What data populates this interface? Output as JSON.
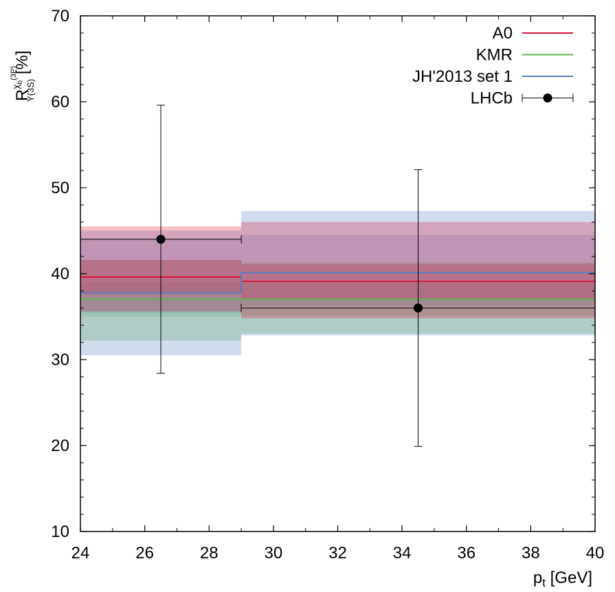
{
  "chart_data": {
    "type": "line",
    "xlabel": "p",
    "xlabel_sub": "t",
    "xlabel_unit": " [GeV]",
    "ylabel": {
      "main": "R",
      "super": "χ",
      "super_sub": "b",
      "super_sup": "(3P)",
      "sub": "Υ(3S)",
      "unit": " [%]"
    },
    "xlim": [
      24,
      40
    ],
    "ylim": [
      10,
      70
    ],
    "xticks": [
      24,
      26,
      28,
      30,
      32,
      34,
      36,
      38,
      40
    ],
    "yticks": [
      10,
      20,
      30,
      40,
      50,
      60,
      70
    ],
    "bins": [
      [
        24,
        29
      ],
      [
        29,
        40
      ]
    ],
    "legend_position": "top-right",
    "series": [
      {
        "name": "A0",
        "color": "#dc143c",
        "central": [
          39.6,
          39.1
        ],
        "band_outer": [
          [
            35.6,
            45.5
          ],
          [
            34.8,
            46.0
          ]
        ],
        "band_inner": [
          [
            37.6,
            41.6
          ],
          [
            37.1,
            41.1
          ]
        ]
      },
      {
        "name": "KMR",
        "color": "#5cb548",
        "central": [
          37.0,
          37.0
        ],
        "band_outer": [
          [
            32.2,
            41.6
          ],
          [
            33.0,
            41.3
          ]
        ],
        "band_inner": [
          [
            35.0,
            39.0
          ],
          [
            35.1,
            38.9
          ]
        ]
      },
      {
        "name": "JH'2013 set 1",
        "color": "#5a7ec2",
        "central": [
          37.8,
          40.1
        ],
        "band_outer": [
          [
            30.5,
            45.0
          ],
          [
            32.8,
            47.3
          ]
        ],
        "band_inner": [
          [
            35.5,
            44.1
          ],
          [
            36.3,
            44.5
          ]
        ]
      }
    ],
    "data_points": {
      "name": "LHCb",
      "color": "#000000",
      "points": [
        {
          "x": 26.5,
          "y": 44.0,
          "xerr": [
            24,
            29
          ],
          "yerr": [
            28.4,
            59.6
          ]
        },
        {
          "x": 34.5,
          "y": 36.0,
          "xerr": [
            29,
            40
          ],
          "yerr": [
            19.9,
            52.1
          ]
        }
      ]
    }
  }
}
